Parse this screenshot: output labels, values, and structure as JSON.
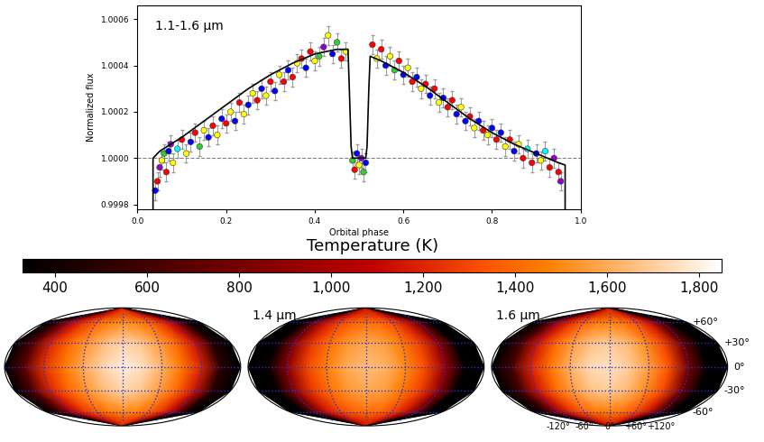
{
  "chart_data": [
    {
      "type": "scatter",
      "annotation": "1.1-1.6 μm",
      "x_label": "Orbital phase",
      "y_label": "Normalized flux",
      "x": [
        0.04,
        0.045,
        0.05,
        0.055,
        0.06,
        0.065,
        0.07,
        0.075,
        0.08,
        0.09,
        0.1,
        0.11,
        0.12,
        0.13,
        0.14,
        0.15,
        0.16,
        0.17,
        0.18,
        0.19,
        0.2,
        0.21,
        0.22,
        0.23,
        0.24,
        0.25,
        0.26,
        0.27,
        0.28,
        0.29,
        0.3,
        0.31,
        0.32,
        0.33,
        0.34,
        0.35,
        0.36,
        0.37,
        0.38,
        0.39,
        0.4,
        0.41,
        0.42,
        0.43,
        0.44,
        0.45,
        0.46,
        0.47,
        0.485,
        0.49,
        0.495,
        0.5,
        0.505,
        0.51,
        0.515,
        0.53,
        0.54,
        0.55,
        0.56,
        0.57,
        0.58,
        0.59,
        0.6,
        0.61,
        0.62,
        0.63,
        0.64,
        0.65,
        0.66,
        0.67,
        0.68,
        0.69,
        0.7,
        0.71,
        0.72,
        0.73,
        0.74,
        0.75,
        0.76,
        0.77,
        0.78,
        0.79,
        0.8,
        0.81,
        0.82,
        0.83,
        0.84,
        0.85,
        0.86,
        0.87,
        0.88,
        0.89,
        0.9,
        0.91,
        0.92,
        0.93,
        0.94,
        0.95,
        0.955
      ],
      "values": [
        0.99986,
        0.9999,
        0.99996,
        0.99999,
        1.00002,
        0.99994,
        1.00003,
        1.00006,
        0.99998,
        1.00004,
        1.00008,
        1.00002,
        1.00007,
        1.00011,
        1.00005,
        1.00012,
        1.00009,
        1.00014,
        1.0001,
        1.00017,
        1.00015,
        1.0002,
        1.00016,
        1.00024,
        1.00019,
        1.00023,
        1.00028,
        1.00025,
        1.0003,
        1.00027,
        1.00033,
        1.00029,
        1.00036,
        1.00033,
        1.00038,
        1.00035,
        1.00041,
        1.00043,
        1.00039,
        1.00046,
        1.00042,
        1.00044,
        1.00048,
        1.00053,
        1.00045,
        1.0005,
        1.00043,
        1.00046,
        0.99999,
        0.99995,
        1.00002,
        0.99997,
        1.0,
        0.99994,
        0.99998,
        1.00049,
        1.00043,
        1.00047,
        1.0004,
        1.00044,
        1.00038,
        1.00042,
        1.00036,
        1.00039,
        1.00033,
        1.00035,
        1.0003,
        1.00032,
        1.00027,
        1.0003,
        1.00024,
        1.00026,
        1.00022,
        1.00025,
        1.00019,
        1.00022,
        1.00016,
        1.00018,
        1.00013,
        1.00016,
        1.00012,
        1.0001,
        1.00013,
        1.00008,
        1.00011,
        1.00005,
        1.00008,
        1.00003,
        1.00006,
        1.0,
        1.00004,
        0.99998,
        1.00002,
        0.99999,
        1.00003,
        0.99996,
        1.0,
        0.99994,
        0.9999
      ],
      "colors": [
        "blue",
        "red",
        "darkviolet",
        "yellow",
        "limegreen",
        "red",
        "blue",
        "darkviolet",
        "yellow",
        "cyan",
        "red",
        "yellow",
        "blue",
        "red",
        "limegreen",
        "yellow",
        "blue",
        "red",
        "yellow",
        "blue",
        "red",
        "yellow",
        "blue",
        "red",
        "yellow",
        "blue",
        "yellow",
        "red",
        "blue",
        "yellow",
        "red",
        "blue",
        "yellow",
        "red",
        "blue",
        "red",
        "yellow",
        "red",
        "blue",
        "red",
        "yellow",
        "limegreen",
        "darkviolet",
        "yellow",
        "blue",
        "limegreen",
        "red",
        "yellow",
        "limegreen",
        "red",
        "blue",
        "yellow",
        "darkviolet",
        "limegreen",
        "blue",
        "red",
        "yellow",
        "red",
        "blue",
        "yellow",
        "limegreen",
        "red",
        "blue",
        "yellow",
        "red",
        "blue",
        "yellow",
        "red",
        "blue",
        "red",
        "yellow",
        "blue",
        "red",
        "red",
        "blue",
        "yellow",
        "blue",
        "red",
        "yellow",
        "blue",
        "red",
        "yellow",
        "blue",
        "red",
        "blue",
        "yellow",
        "red",
        "blue",
        "yellow",
        "red",
        "cyan",
        "red",
        "blue",
        "yellow",
        "cyan",
        "red",
        "darkviolet",
        "red",
        "darkviolet"
      ],
      "error": 4e-05,
      "model": {
        "type": "line",
        "color": "black",
        "line_style": "solid",
        "x": [
          0.035,
          0.035,
          0.05,
          0.1,
          0.15,
          0.2,
          0.25,
          0.3,
          0.35,
          0.4,
          0.45,
          0.475,
          0.478,
          0.482,
          0.485,
          0.515,
          0.518,
          0.522,
          0.525,
          0.55,
          0.6,
          0.65,
          0.7,
          0.75,
          0.8,
          0.85,
          0.9,
          0.95,
          0.965,
          0.965
        ],
        "values": [
          0.9997,
          1.0,
          1.00003,
          1.00009,
          1.00016,
          1.00023,
          1.0003,
          1.00036,
          1.00041,
          1.00045,
          1.00047,
          1.00047,
          1.0003,
          1.00005,
          1.0,
          1.0,
          1.00005,
          1.0003,
          1.00044,
          1.00042,
          1.00037,
          1.00031,
          1.00024,
          1.00017,
          1.00011,
          1.00006,
          1.00002,
          0.99998,
          0.99997,
          0.9997
        ]
      },
      "reference_line": {
        "value": 1.0,
        "line_style": "dashed",
        "color": "gray"
      },
      "xlim": [
        0.0,
        1.0
      ],
      "xticks": [
        0.0,
        0.2,
        0.4,
        0.6,
        0.8,
        1.0
      ],
      "ylim": [
        0.99978,
        1.00066
      ],
      "yticks": [
        {
          "value": 0.9998,
          "label": "0.9998"
        },
        {
          "value": 1.0,
          "label": "1.0000"
        },
        {
          "value": 1.0002,
          "label": "1.0002"
        },
        {
          "value": 1.0004,
          "label": "1.0004"
        },
        {
          "value": 1.0006,
          "label": "1.0006"
        }
      ]
    },
    {
      "type": "map",
      "colorbar": {
        "label": "Temperature (K)",
        "range": [
          330,
          1850
        ],
        "ticks": [
          400,
          600,
          800,
          {
            "value": 1000,
            "label": "1,000"
          },
          {
            "value": 1200,
            "label": "1,200"
          },
          {
            "value": 1400,
            "label": "1,400"
          },
          {
            "value": 1600,
            "label": "1,600"
          },
          {
            "value": 1800,
            "label": "1,800"
          }
        ]
      },
      "grid": true,
      "lon": [
        -180,
        -150,
        -120,
        -90,
        -60,
        -30,
        0,
        30,
        60,
        90,
        120,
        150,
        180
      ],
      "lat": [
        -90,
        -60,
        -30,
        0,
        30,
        60,
        90
      ],
      "lon_ticks": [
        {
          "value": -120,
          "label": "-120°"
        },
        {
          "value": -60,
          "label": "-60°"
        },
        {
          "value": 0,
          "label": "0°"
        },
        {
          "value": 60,
          "label": "+60°"
        },
        {
          "value": 120,
          "label": "+120°"
        }
      ],
      "lat_ticks": [
        {
          "value": 60,
          "label": "+60°"
        },
        {
          "value": 30,
          "label": "+30°"
        },
        {
          "value": 0,
          "label": "0°"
        },
        {
          "value": -30,
          "label": "-30°"
        },
        {
          "value": -60,
          "label": "-60°"
        }
      ],
      "maps": [
        {
          "tick_labels": false,
          "temperatures": [
            [
              300,
              450,
              850,
              1000,
              1100,
              1150,
              1180,
              1160,
              1100,
              1000,
              820,
              380,
              300
            ],
            [
              300,
              550,
              1050,
              1250,
              1380,
              1460,
              1500,
              1480,
              1400,
              1250,
              1000,
              420,
              300
            ],
            [
              300,
              650,
              1200,
              1400,
              1540,
              1650,
              1720,
              1680,
              1560,
              1400,
              1150,
              470,
              300
            ],
            [
              300,
              700,
              1250,
              1450,
              1600,
              1720,
              1800,
              1750,
              1620,
              1450,
              1200,
              500,
              300
            ],
            [
              300,
              650,
              1200,
              1400,
              1540,
              1650,
              1720,
              1680,
              1560,
              1400,
              1150,
              470,
              300
            ],
            [
              300,
              550,
              1050,
              1250,
              1380,
              1460,
              1500,
              1480,
              1400,
              1250,
              1000,
              420,
              300
            ],
            [
              300,
              450,
              850,
              1000,
              1100,
              1150,
              1180,
              1160,
              1100,
              1000,
              820,
              380,
              300
            ]
          ]
        },
        {
          "label": "1.4 μm",
          "tick_labels": false,
          "temperatures": [
            [
              300,
              310,
              650,
              950,
              1050,
              1100,
              1120,
              1110,
              1060,
              960,
              660,
              310,
              300
            ],
            [
              300,
              320,
              780,
              1150,
              1300,
              1380,
              1420,
              1400,
              1320,
              1160,
              800,
              320,
              300
            ],
            [
              300,
              340,
              870,
              1260,
              1430,
              1540,
              1590,
              1560,
              1450,
              1280,
              920,
              340,
              300
            ],
            [
              300,
              350,
              900,
              1300,
              1480,
              1600,
              1650,
              1620,
              1500,
              1320,
              950,
              350,
              300
            ],
            [
              300,
              340,
              870,
              1260,
              1430,
              1540,
              1590,
              1560,
              1450,
              1280,
              920,
              340,
              300
            ],
            [
              300,
              320,
              780,
              1150,
              1300,
              1380,
              1420,
              1400,
              1320,
              1160,
              800,
              320,
              300
            ],
            [
              300,
              310,
              650,
              950,
              1050,
              1100,
              1120,
              1110,
              1060,
              960,
              660,
              310,
              300
            ]
          ]
        },
        {
          "label": "1.6 μm",
          "temperatures": [
            [
              300,
              420,
              820,
              1000,
              1080,
              1130,
              1150,
              1120,
              1060,
              930,
              560,
              300,
              300
            ],
            [
              300,
              500,
              1000,
              1230,
              1370,
              1450,
              1470,
              1430,
              1330,
              1150,
              680,
              300,
              300
            ],
            [
              300,
              570,
              1150,
              1400,
              1560,
              1670,
              1690,
              1640,
              1500,
              1300,
              770,
              300,
              300
            ],
            [
              300,
              600,
              1200,
              1450,
              1620,
              1740,
              1760,
              1700,
              1560,
              1350,
              800,
              300,
              300
            ],
            [
              300,
              570,
              1150,
              1400,
              1560,
              1670,
              1690,
              1640,
              1500,
              1300,
              770,
              300,
              300
            ],
            [
              300,
              500,
              1000,
              1230,
              1370,
              1450,
              1470,
              1430,
              1330,
              1150,
              680,
              300,
              300
            ],
            [
              300,
              420,
              820,
              1000,
              1080,
              1130,
              1150,
              1120,
              1060,
              930,
              560,
              300,
              300
            ]
          ]
        }
      ]
    }
  ]
}
